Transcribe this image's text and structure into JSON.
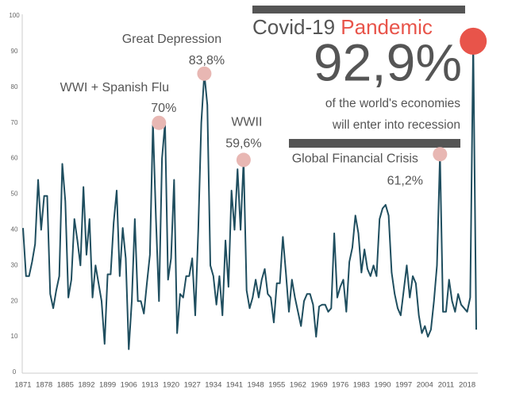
{
  "chart_data": {
    "type": "line",
    "color": "#1f4e5f",
    "x": [
      1871,
      1872,
      1873,
      1874,
      1875,
      1876,
      1877,
      1878,
      1879,
      1880,
      1881,
      1882,
      1883,
      1884,
      1885,
      1886,
      1887,
      1888,
      1889,
      1890,
      1891,
      1892,
      1893,
      1894,
      1895,
      1896,
      1897,
      1898,
      1899,
      1900,
      1901,
      1902,
      1903,
      1904,
      1905,
      1906,
      1907,
      1908,
      1909,
      1910,
      1911,
      1912,
      1913,
      1914,
      1915,
      1916,
      1917,
      1918,
      1919,
      1920,
      1921,
      1922,
      1923,
      1924,
      1925,
      1926,
      1927,
      1928,
      1929,
      1930,
      1931,
      1932,
      1933,
      1934,
      1935,
      1936,
      1937,
      1938,
      1939,
      1940,
      1941,
      1942,
      1943,
      1944,
      1945,
      1946,
      1947,
      1948,
      1949,
      1950,
      1951,
      1952,
      1953,
      1954,
      1955,
      1956,
      1957,
      1958,
      1959,
      1960,
      1961,
      1962,
      1963,
      1964,
      1965,
      1966,
      1967,
      1968,
      1969,
      1970,
      1971,
      1972,
      1973,
      1974,
      1975,
      1976,
      1977,
      1978,
      1979,
      1980,
      1981,
      1982,
      1983,
      1984,
      1985,
      1986,
      1987,
      1988,
      1989,
      1990,
      1991,
      1992,
      1993,
      1994,
      1995,
      1996,
      1997,
      1998,
      1999,
      2000,
      2001,
      2002,
      2003,
      2004,
      2005,
      2006,
      2007,
      2008,
      2009,
      2010,
      2011,
      2012,
      2013,
      2014,
      2015,
      2016,
      2017,
      2018,
      2019,
      2020,
      2021
    ],
    "values": [
      40.5,
      27,
      27,
      31,
      36,
      54,
      40,
      49.5,
      49.5,
      22,
      18,
      23,
      27,
      58.5,
      48,
      21,
      26,
      43,
      37,
      30,
      52,
      33,
      43,
      21,
      30,
      25,
      20,
      8,
      27.5,
      27.5,
      42,
      51,
      27,
      40.5,
      32,
      6.5,
      20,
      43,
      20,
      20,
      16.5,
      25,
      33,
      70,
      43,
      20,
      60,
      70,
      26,
      32,
      54,
      11,
      22,
      21,
      27,
      27,
      32,
      16,
      40,
      70,
      83.8,
      75,
      30,
      27,
      19,
      27,
      16,
      37,
      24,
      51,
      40,
      57,
      40,
      59.6,
      23,
      18,
      21,
      26,
      21,
      26,
      29,
      22,
      21,
      14,
      25,
      25,
      38,
      28,
      17,
      26,
      21,
      17,
      13,
      20,
      22,
      22,
      19,
      10,
      18.5,
      19,
      19,
      17,
      18,
      39,
      21,
      24,
      26,
      17,
      31,
      35,
      44,
      39,
      28,
      34.5,
      29,
      27,
      30,
      27,
      43,
      46,
      47,
      44,
      28,
      22,
      18,
      16,
      23,
      30,
      21,
      27,
      25,
      16,
      11,
      13,
      10,
      12,
      20,
      30,
      61.2,
      17,
      17,
      26,
      20,
      17,
      22,
      19,
      18,
      17,
      21,
      92.9,
      12
    ],
    "xlim": [
      1871,
      2021
    ],
    "xticks": [
      1871,
      1878,
      1885,
      1892,
      1899,
      1906,
      1913,
      1920,
      1927,
      1934,
      1941,
      1948,
      1955,
      1962,
      1969,
      1976,
      1983,
      1990,
      1997,
      2004,
      2011,
      2018
    ],
    "ylim": [
      0,
      100
    ],
    "yticks": [
      0,
      10,
      20,
      30,
      40,
      50,
      60,
      70,
      80,
      90,
      100
    ],
    "annotations": [
      {
        "label": "WWI + Spanish Flu",
        "x": 1916,
        "y": 70,
        "value_label": "70%",
        "color": "#e8b7b3"
      },
      {
        "label": "Great Depression",
        "x": 1931,
        "y": 83.8,
        "value_label": "83,8%",
        "color": "#e8b7b3"
      },
      {
        "label": "WWII",
        "x": 1944,
        "y": 59.6,
        "value_label": "59,6%",
        "color": "#e8b7b3"
      },
      {
        "label": "Global Financial Crisis",
        "x": 2009,
        "y": 61.2,
        "value_label": "61,2%",
        "color": "#e8b7b3"
      }
    ],
    "covid": {
      "title": "Covid-19",
      "title_highlight": "Pandemic",
      "x": 2020,
      "y": 92.9,
      "value_label": "92,9%",
      "color": "#e8544a",
      "note": [
        "of the world's economies",
        "will enter into recession"
      ]
    }
  }
}
